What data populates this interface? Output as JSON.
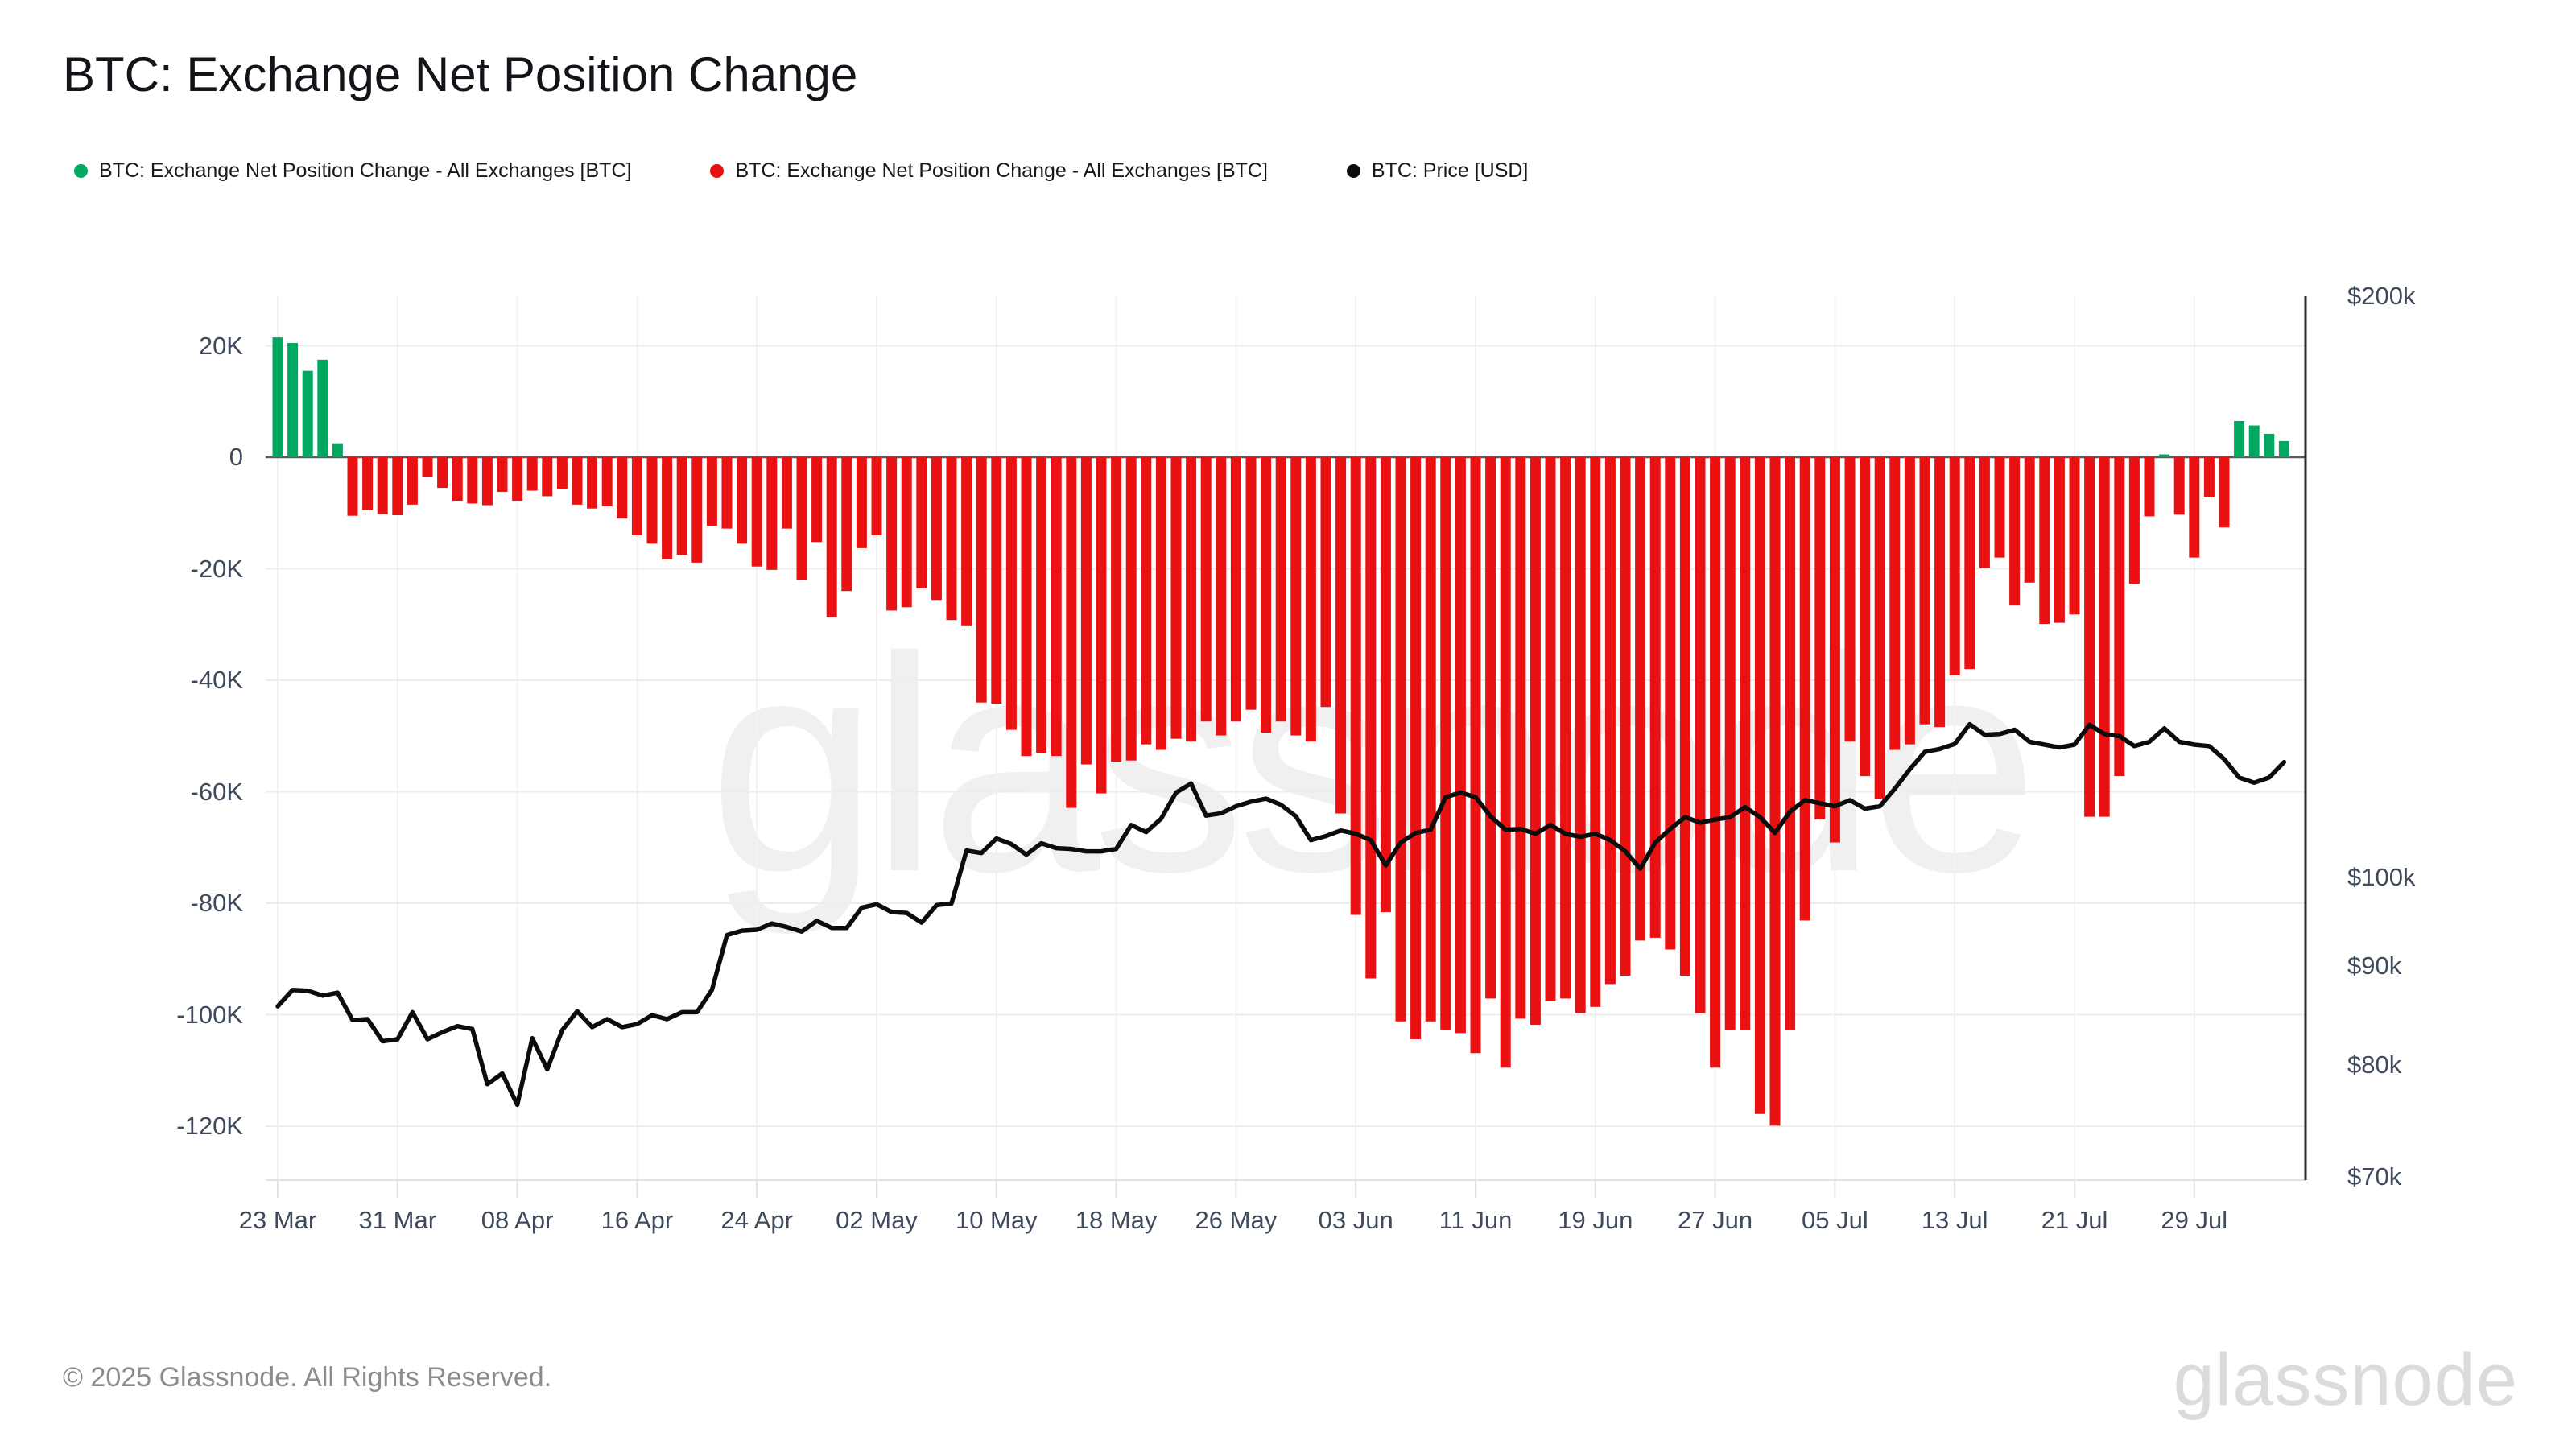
{
  "header": {
    "title": "BTC: Exchange Net Position Change"
  },
  "legend": [
    {
      "label": "BTC: Exchange Net Position Change - All Exchanges [BTC]",
      "color": "#00a95f",
      "icon": "green-dot"
    },
    {
      "label": "BTC: Exchange Net Position Change - All Exchanges [BTC]",
      "color": "#e91111",
      "icon": "red-dot"
    },
    {
      "label": "BTC: Price [USD]",
      "color": "#0c0c0c",
      "icon": "black-dot"
    }
  ],
  "watermark": "glassnode",
  "footer": {
    "copyright": "© 2025 Glassnode. All Rights Reserved.",
    "brand": "glassnode"
  },
  "colors": {
    "positive_bar": "#00a95f",
    "negative_bar": "#e91111",
    "price_line": "#0c0c0c",
    "grid": "#ededed",
    "grid_vertical": "#f2f2f2",
    "zero_line": "#5b5b5b",
    "axis_line": "#2a2a2a",
    "bottom_line": "#e3e3e3",
    "label_text": "#3f4a5c",
    "watermark": "#f0f0f0"
  },
  "chart_data": {
    "type": "bar",
    "title": "BTC: Exchange Net Position Change",
    "note": "daily bars (net position change, BTC) with overlaid BTC price line on log-scaled right axis",
    "x_tick_labels": [
      "23 Mar",
      "31 Mar",
      "08 Apr",
      "16 Apr",
      "24 Apr",
      "02 May",
      "10 May",
      "18 May",
      "26 May",
      "03 Jun",
      "11 Jun",
      "19 Jun",
      "27 Jun",
      "05 Jul",
      "13 Jul",
      "21 Jul",
      "29 Jul"
    ],
    "x_tick_day_indices": [
      0,
      8,
      16,
      24,
      32,
      40,
      48,
      56,
      64,
      72,
      80,
      88,
      96,
      104,
      112,
      120,
      128
    ],
    "left_axis": {
      "unit": "BTC",
      "tick_labels": [
        "20K",
        "0",
        "-20K",
        "-40K",
        "-60K",
        "-80K",
        "-100K",
        "-120K"
      ],
      "tick_values_k": [
        20,
        0,
        -20,
        -40,
        -60,
        -80,
        -100,
        -120
      ],
      "ylim_k": [
        -130,
        25
      ]
    },
    "right_axis": {
      "unit": "USD",
      "scale": "log",
      "tick_labels": [
        "$200k",
        "$100k",
        "$90k",
        "$80k",
        "$70k"
      ],
      "tick_values_k": [
        200,
        100,
        90,
        80,
        70
      ],
      "ylim_k": [
        70,
        200
      ]
    },
    "series": [
      {
        "name": "BTC: Exchange Net Position Change - All Exchanges [BTC]",
        "type": "bar",
        "unit": "K BTC",
        "values": [
          21.5,
          20.5,
          15.5,
          17.5,
          2.5,
          -10.5,
          -9.5,
          -10.2,
          -10.4,
          -8.5,
          -3.5,
          -5.5,
          -7.8,
          -8.3,
          -8.6,
          -6.2,
          -7.8,
          -6.0,
          -7.0,
          -5.7,
          -8.5,
          -9.2,
          -8.8,
          -11.0,
          -14.0,
          -15.5,
          -18.3,
          -17.5,
          -18.9,
          -12.3,
          -12.8,
          -15.5,
          -19.6,
          -20.2,
          -12.8,
          -22.0,
          -15.2,
          -28.7,
          -24.0,
          -16.3,
          -14.0,
          -27.5,
          -26.9,
          -23.5,
          -25.6,
          -29.2,
          -30.3,
          -44.0,
          -44.2,
          -48.9,
          -53.6,
          -53.0,
          -53.6,
          -62.9,
          -55.1,
          -60.3,
          -54.6,
          -54.4,
          -51.5,
          -52.5,
          -50.5,
          -51.0,
          -47.4,
          -49.9,
          -47.4,
          -45.3,
          -49.4,
          -47.4,
          -49.9,
          -51.0,
          -44.8,
          -63.9,
          -82.1,
          -93.5,
          -81.6,
          -101.2,
          -104.4,
          -101.2,
          -102.8,
          -103.3,
          -106.9,
          -97.1,
          -109.5,
          -100.7,
          -101.8,
          -97.6,
          -97.1,
          -99.7,
          -98.6,
          -94.5,
          -93.0,
          -86.7,
          -86.2,
          -88.3,
          -93.0,
          -99.7,
          -109.5,
          -102.8,
          -102.8,
          -117.8,
          -119.9,
          -102.8,
          -83.1,
          -65.0,
          -69.1,
          -51.0,
          -57.2,
          -61.3,
          -52.5,
          -51.5,
          -47.9,
          -48.4,
          -39.1,
          -38.0,
          -19.9,
          -18.0,
          -26.6,
          -22.5,
          -29.9,
          -29.7,
          -28.2,
          -64.5,
          -64.5,
          -57.2,
          -22.7,
          -10.6,
          0.5,
          -10.3,
          -18.0,
          -7.2,
          -12.6,
          6.5,
          5.7,
          4.2,
          2.9
        ]
      },
      {
        "name": "BTC: Price [USD]",
        "type": "line",
        "unit": "K USD",
        "values": [
          85.8,
          87.5,
          87.4,
          86.9,
          87.2,
          84.4,
          84.5,
          82.3,
          82.5,
          85.2,
          82.5,
          83.2,
          83.8,
          83.5,
          78.2,
          79.2,
          76.3,
          82.6,
          79.6,
          83.4,
          85.3,
          83.7,
          84.5,
          83.7,
          84.0,
          84.9,
          84.5,
          85.2,
          85.2,
          87.5,
          93.4,
          93.9,
          94.0,
          94.7,
          94.3,
          93.8,
          95.0,
          94.2,
          94.2,
          96.5,
          96.9,
          96.0,
          95.9,
          94.8,
          96.8,
          97.0,
          103.3,
          103.0,
          104.8,
          104.1,
          102.8,
          104.2,
          103.6,
          103.5,
          103.2,
          103.2,
          103.5,
          106.5,
          105.6,
          107.3,
          110.7,
          111.9,
          107.7,
          108.0,
          108.9,
          109.5,
          109.9,
          109.1,
          107.6,
          104.6,
          105.1,
          105.8,
          105.4,
          104.6,
          101.5,
          104.3,
          105.5,
          105.9,
          110.1,
          110.7,
          110.1,
          107.6,
          105.9,
          106.0,
          105.4,
          106.5,
          105.4,
          105.0,
          105.4,
          104.6,
          103.2,
          101.1,
          104.3,
          106.0,
          107.5,
          106.8,
          107.2,
          107.5,
          108.8,
          107.5,
          105.5,
          108.2,
          109.7,
          109.3,
          108.9,
          109.7,
          108.6,
          108.9,
          111.2,
          113.8,
          116.2,
          116.6,
          117.3,
          120.1,
          118.6,
          118.7,
          119.3,
          117.6,
          117.2,
          116.8,
          117.2,
          120.0,
          118.7,
          118.4,
          117.0,
          117.6,
          119.5,
          117.6,
          117.2,
          117.0,
          115.2,
          112.7,
          112.0,
          112.7,
          114.8
        ]
      }
    ]
  }
}
